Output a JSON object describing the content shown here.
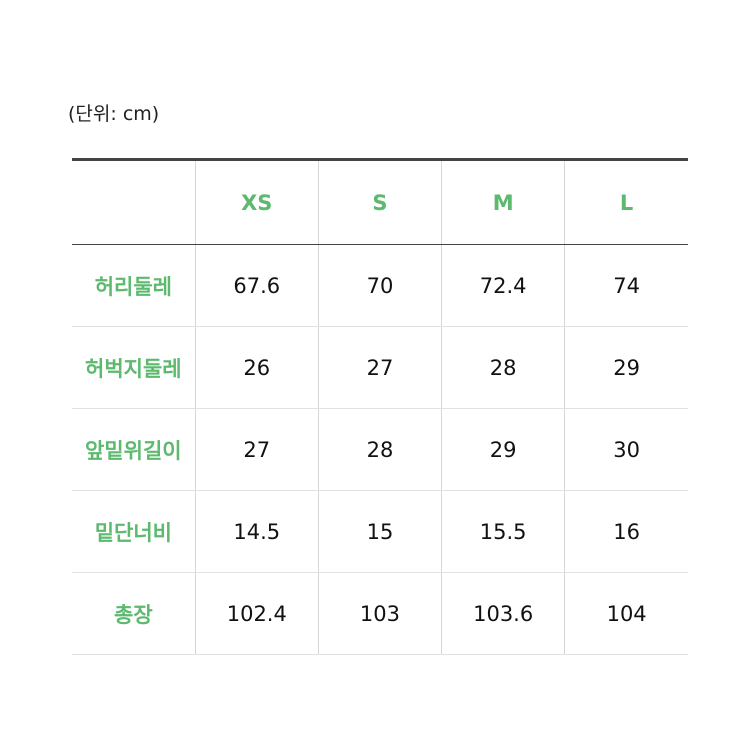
{
  "unit_label": "(단위: cm)",
  "accent_color": "#5cb96e",
  "table": {
    "headers": [
      "",
      "XS",
      "S",
      "M",
      "L"
    ],
    "rows": [
      {
        "label": "허리둘레",
        "values": [
          "67.6",
          "70",
          "72.4",
          "74"
        ]
      },
      {
        "label": "허벅지둘레",
        "values": [
          "26",
          "27",
          "28",
          "29"
        ]
      },
      {
        "label": "앞밑위길이",
        "values": [
          "27",
          "28",
          "29",
          "30"
        ]
      },
      {
        "label": "밑단너비",
        "values": [
          "14.5",
          "15",
          "15.5",
          "16"
        ]
      },
      {
        "label": "총장",
        "values": [
          "102.4",
          "103",
          "103.6",
          "104"
        ]
      }
    ]
  }
}
